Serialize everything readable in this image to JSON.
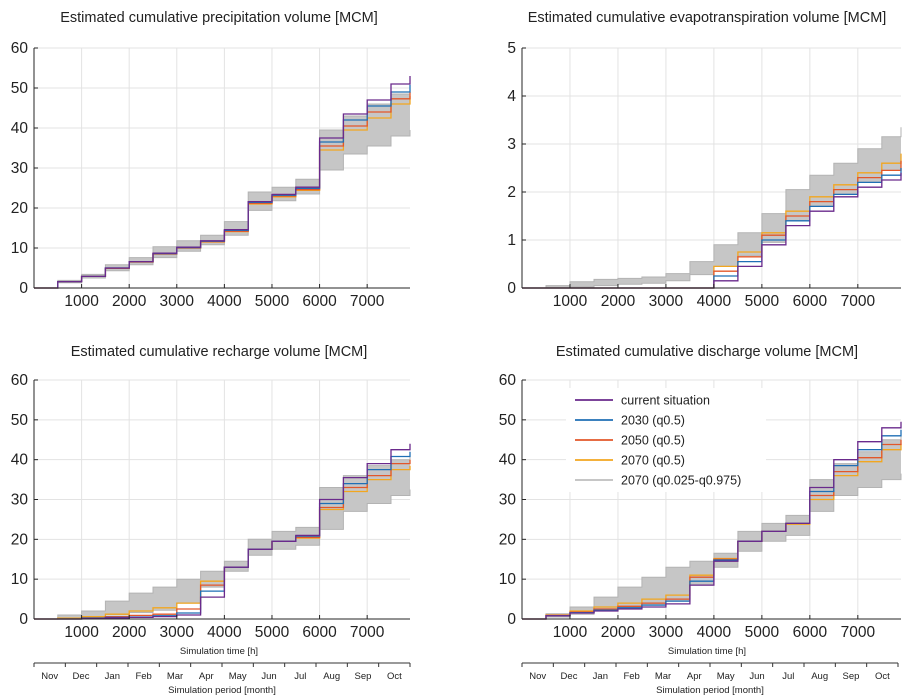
{
  "colors": {
    "current": "#6a2a8c",
    "y2030": "#1f6fb5",
    "y2050": "#e2572a",
    "y2070": "#f2a61f",
    "band": "#c6c6c6",
    "band_line": "#b3b3b3",
    "grid": "#e3e3e3"
  },
  "legend": [
    {
      "label": "current situation",
      "color_key": "current"
    },
    {
      "label": "2030 (q0.5)",
      "color_key": "y2030"
    },
    {
      "label": "2050 (q0.5)",
      "color_key": "y2050"
    },
    {
      "label": "2070 (q0.5)",
      "color_key": "y2070"
    },
    {
      "label": "2070 (q0.025-q0.975)",
      "color_key": "band"
    }
  ],
  "time_axis_label": "Simulation time [h]",
  "month_axis": {
    "label": "Simulation period [month]",
    "months": [
      "Nov",
      "Dec",
      "Jan",
      "Feb",
      "Mar",
      "Apr",
      "May",
      "Jun",
      "Jul",
      "Aug",
      "Sep",
      "Oct"
    ]
  },
  "chart_data": [
    {
      "type": "line",
      "title": "Estimated cumulative precipitation volume [MCM]",
      "xlim": [
        0,
        7900
      ],
      "ylim": [
        0,
        60
      ],
      "x_ticks": [
        1000,
        2000,
        3000,
        4000,
        5000,
        6000,
        7000
      ],
      "y_ticks": [
        0,
        10,
        20,
        30,
        40,
        50,
        60
      ],
      "grid": true,
      "x": [
        0,
        500,
        1000,
        1500,
        2000,
        2500,
        3000,
        3500,
        4000,
        4500,
        5000,
        5500,
        6000,
        6500,
        7000,
        7500,
        7900
      ],
      "band": {
        "name": "2070 (q0.025-q0.975)",
        "lower": [
          0,
          1.3,
          2.5,
          4.3,
          5.8,
          7.6,
          9.2,
          10.8,
          13.2,
          19.4,
          21.8,
          23.5,
          29.5,
          33.5,
          35.5,
          38.0,
          39.5
        ],
        "upper": [
          0,
          1.9,
          3.4,
          5.8,
          7.6,
          10.3,
          11.8,
          13.2,
          16.6,
          24.0,
          25.2,
          27.2,
          39.5,
          43.0,
          46.0,
          48.5,
          50.0
        ]
      },
      "series": [
        {
          "name": "current situation",
          "color_key": "current",
          "values": [
            0,
            1.6,
            2.9,
            5.0,
            6.6,
            8.7,
            10.2,
            11.8,
            14.6,
            21.6,
            23.4,
            25.2,
            37.5,
            43.5,
            47.0,
            51.0,
            53.0
          ]
        },
        {
          "name": "2030 (q0.5)",
          "color_key": "y2030",
          "values": [
            0,
            1.6,
            2.9,
            5.0,
            6.6,
            8.6,
            10.1,
            11.7,
            14.4,
            21.4,
            23.2,
            24.9,
            36.5,
            42.0,
            45.5,
            49.0,
            50.8
          ]
        },
        {
          "name": "2050 (q0.5)",
          "color_key": "y2050",
          "values": [
            0,
            1.6,
            2.9,
            4.9,
            6.5,
            8.5,
            10.0,
            11.6,
            14.2,
            21.2,
            23.0,
            24.6,
            35.5,
            40.5,
            44.0,
            47.3,
            49.0
          ]
        },
        {
          "name": "2070 (q0.5)",
          "color_key": "y2070",
          "values": [
            0,
            1.6,
            2.9,
            4.9,
            6.5,
            8.5,
            10.0,
            11.5,
            14.1,
            21.0,
            22.8,
            24.4,
            34.5,
            39.5,
            42.5,
            46.0,
            48.0
          ]
        }
      ]
    },
    {
      "type": "line",
      "title": "Estimated cumulative evapotranspiration volume [MCM]",
      "xlim": [
        0,
        7900
      ],
      "ylim": [
        0,
        5
      ],
      "x_ticks": [
        1000,
        2000,
        3000,
        4000,
        5000,
        6000,
        7000
      ],
      "y_ticks": [
        0,
        1,
        2,
        3,
        4,
        5
      ],
      "grid": true,
      "x": [
        0,
        500,
        1000,
        1500,
        2000,
        2500,
        3000,
        3500,
        4000,
        4500,
        5000,
        5500,
        6000,
        6500,
        7000,
        7500,
        7900
      ],
      "band": {
        "name": "2070 (q0.025-q0.975)",
        "lower": [
          0,
          0,
          0.02,
          0.05,
          0.08,
          0.1,
          0.15,
          0.28,
          0.45,
          0.68,
          0.95,
          1.4,
          1.7,
          1.95,
          2.2,
          2.45,
          2.6
        ],
        "upper": [
          0,
          0.05,
          0.13,
          0.18,
          0.2,
          0.23,
          0.3,
          0.55,
          0.9,
          1.15,
          1.55,
          2.05,
          2.35,
          2.6,
          2.9,
          3.15,
          3.35
        ]
      },
      "series": [
        {
          "name": "current situation",
          "color_key": "current",
          "values": [
            0,
            0,
            0,
            0,
            0,
            0,
            0,
            0,
            0.15,
            0.45,
            0.9,
            1.3,
            1.6,
            1.9,
            2.1,
            2.25,
            2.4
          ]
        },
        {
          "name": "2030 (q0.5)",
          "color_key": "y2030",
          "values": [
            0,
            0,
            0,
            0,
            0,
            0,
            0,
            0,
            0.25,
            0.55,
            1.0,
            1.4,
            1.7,
            1.95,
            2.2,
            2.35,
            2.5
          ]
        },
        {
          "name": "2050 (q0.5)",
          "color_key": "y2050",
          "values": [
            0,
            0,
            0,
            0,
            0,
            0,
            0,
            0,
            0.35,
            0.65,
            1.1,
            1.5,
            1.8,
            2.05,
            2.3,
            2.45,
            2.65
          ]
        },
        {
          "name": "2070 (q0.5)",
          "color_key": "y2070",
          "values": [
            0,
            0,
            0,
            0,
            0,
            0,
            0,
            0,
            0.45,
            0.75,
            1.15,
            1.6,
            1.9,
            2.15,
            2.4,
            2.6,
            2.8
          ]
        }
      ]
    },
    {
      "type": "line",
      "title": "Estimated cumulative recharge volume [MCM]",
      "xlim": [
        0,
        7900
      ],
      "ylim": [
        0,
        60
      ],
      "x_ticks": [
        1000,
        2000,
        3000,
        4000,
        5000,
        6000,
        7000
      ],
      "y_ticks": [
        0,
        10,
        20,
        30,
        40,
        50,
        60
      ],
      "grid": true,
      "x": [
        0,
        500,
        1000,
        1500,
        2000,
        2500,
        3000,
        3500,
        4000,
        4500,
        5000,
        5500,
        6000,
        6500,
        7000,
        7500,
        7900
      ],
      "band": {
        "name": "2070 (q0.025-q0.975)",
        "lower": [
          0,
          0.2,
          0.5,
          1.0,
          1.6,
          2.2,
          4.0,
          8.0,
          12.0,
          16.0,
          17.5,
          18.5,
          22.5,
          27.0,
          29.0,
          31.0,
          32.5
        ],
        "upper": [
          0,
          1.0,
          2.0,
          4.5,
          6.5,
          8.0,
          10.0,
          12.0,
          14.5,
          20.0,
          22.0,
          23.0,
          33.0,
          36.0,
          38.5,
          40.0,
          41.0
        ]
      },
      "series": [
        {
          "name": "current situation",
          "color_key": "current",
          "values": [
            0,
            0,
            0.1,
            0.3,
            0.4,
            0.6,
            1.0,
            5.5,
            13.0,
            17.5,
            19.5,
            21.0,
            30.0,
            35.5,
            39.0,
            42.5,
            44.0
          ]
        },
        {
          "name": "2030 (q0.5)",
          "color_key": "y2030",
          "values": [
            0,
            0,
            0.2,
            0.4,
            0.5,
            0.8,
            1.5,
            7.0,
            13.0,
            17.5,
            19.5,
            20.8,
            29.0,
            34.0,
            37.5,
            40.8,
            42.0
          ]
        },
        {
          "name": "2050 (q0.5)",
          "color_key": "y2050",
          "values": [
            0,
            0,
            0.3,
            0.6,
            0.9,
            1.2,
            2.5,
            8.5,
            13.0,
            17.5,
            19.5,
            20.5,
            28.0,
            33.0,
            36.0,
            39.0,
            40.0
          ]
        },
        {
          "name": "2070 (q0.5)",
          "color_key": "y2070",
          "values": [
            0,
            0.2,
            0.6,
            1.2,
            2.0,
            2.8,
            4.0,
            9.5,
            13.0,
            17.5,
            19.5,
            20.3,
            27.5,
            32.0,
            35.0,
            37.5,
            38.5
          ]
        }
      ]
    },
    {
      "type": "line",
      "title": "Estimated cumulative discharge volume [MCM]",
      "xlim": [
        0,
        7900
      ],
      "ylim": [
        0,
        60
      ],
      "x_ticks": [
        1000,
        2000,
        3000,
        4000,
        5000,
        6000,
        7000
      ],
      "y_ticks": [
        0,
        10,
        20,
        30,
        40,
        50,
        60
      ],
      "grid": true,
      "legend_position": "top-left",
      "x": [
        0,
        500,
        1000,
        1500,
        2000,
        2500,
        3000,
        3500,
        4000,
        4500,
        5000,
        5500,
        6000,
        6500,
        7000,
        7500,
        7900
      ],
      "band": {
        "name": "2070 (q0.025-q0.975)",
        "lower": [
          0,
          0.5,
          1.2,
          2.0,
          2.8,
          3.6,
          4.5,
          8.5,
          13.0,
          17.0,
          19.5,
          21.0,
          27.0,
          31.0,
          33.0,
          35.0,
          36.5
        ],
        "upper": [
          0,
          1.3,
          3.0,
          5.5,
          8.0,
          10.5,
          13.0,
          14.5,
          16.5,
          22.0,
          24.0,
          26.0,
          35.0,
          39.0,
          42.0,
          45.0,
          46.0
        ]
      },
      "series": [
        {
          "name": "current situation",
          "color_key": "current",
          "values": [
            0,
            0.8,
            1.5,
            2.0,
            2.5,
            3.0,
            3.8,
            8.5,
            14.5,
            19.5,
            22.0,
            24.0,
            33.0,
            40.0,
            44.5,
            48.0,
            49.5
          ]
        },
        {
          "name": "2030 (q0.5)",
          "color_key": "y2030",
          "values": [
            0,
            0.8,
            1.6,
            2.2,
            2.8,
            3.5,
            4.5,
            9.5,
            14.8,
            19.5,
            22.0,
            24.0,
            32.0,
            38.5,
            42.5,
            46.0,
            47.5
          ]
        },
        {
          "name": "2050 (q0.5)",
          "color_key": "y2050",
          "values": [
            0,
            0.9,
            1.7,
            2.5,
            3.2,
            4.0,
            5.0,
            10.5,
            15.0,
            19.5,
            22.0,
            24.0,
            31.0,
            37.0,
            40.5,
            43.8,
            45.0
          ]
        },
        {
          "name": "2070 (q0.5)",
          "color_key": "y2070",
          "values": [
            0,
            1.0,
            2.0,
            3.0,
            4.0,
            5.0,
            6.0,
            11.0,
            15.2,
            19.5,
            22.0,
            23.8,
            30.0,
            36.0,
            39.5,
            42.5,
            44.0
          ]
        }
      ]
    }
  ]
}
